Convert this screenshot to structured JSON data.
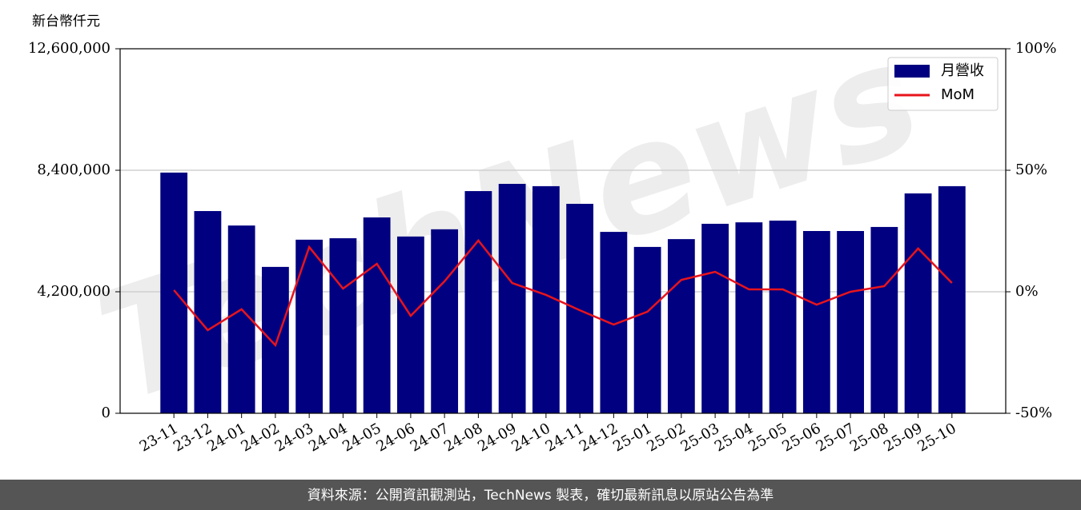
{
  "chart_data": {
    "type": "bar_line",
    "y_label": "新台幣仟元",
    "categories": [
      "23-11",
      "23-12",
      "24-01",
      "24-02",
      "24-03",
      "24-04",
      "24-05",
      "24-06",
      "24-07",
      "24-08",
      "24-09",
      "24-10",
      "24-11",
      "24-12",
      "25-01",
      "25-02",
      "25-03",
      "25-04",
      "25-05",
      "25-06",
      "25-07",
      "25-08",
      "25-09",
      "25-10"
    ],
    "series": [
      {
        "name": "月營收",
        "type": "bar",
        "color": "#000080",
        "values": [
          8320000,
          6990000,
          6490000,
          5060000,
          6000000,
          6050000,
          6770000,
          6110000,
          6360000,
          7680000,
          7930000,
          7850000,
          7240000,
          6270000,
          5750000,
          6020000,
          6550000,
          6600000,
          6660000,
          6300000,
          6300000,
          6440000,
          7600000,
          7850000
        ]
      },
      {
        "name": "MoM",
        "type": "line",
        "axis": "y2",
        "color": "#e8141c",
        "values": [
          0.7,
          -15.8,
          -7.2,
          -22.0,
          18.4,
          1.3,
          11.5,
          -9.9,
          4.3,
          21.1,
          3.6,
          -1.3,
          -7.6,
          -13.5,
          -8.2,
          4.9,
          8.2,
          1.0,
          1.0,
          -5.3,
          0,
          2.3,
          17.8,
          3.6
        ]
      }
    ],
    "ylim": [
      0,
      12600000
    ],
    "yticks": [
      0,
      {
        "value": 4200000,
        "label": "4,200,000"
      },
      {
        "value": 8400000,
        "label": "8,400,000"
      },
      {
        "value": 12600000,
        "label": "12,600,000"
      }
    ],
    "y2lim": [
      -50,
      100
    ],
    "y2ticks": [
      {
        "value": -50,
        "label": "-50%"
      },
      {
        "value": 0,
        "label": "0%"
      },
      {
        "value": 50,
        "label": "50%"
      },
      {
        "value": 100,
        "label": "100%"
      }
    ],
    "grid": true,
    "legend": "upper right",
    "watermark": "TechNews",
    "source": "資料來源：公開資訊觀測站，TechNews 製表，確切最新訊息以原站公告為準"
  }
}
